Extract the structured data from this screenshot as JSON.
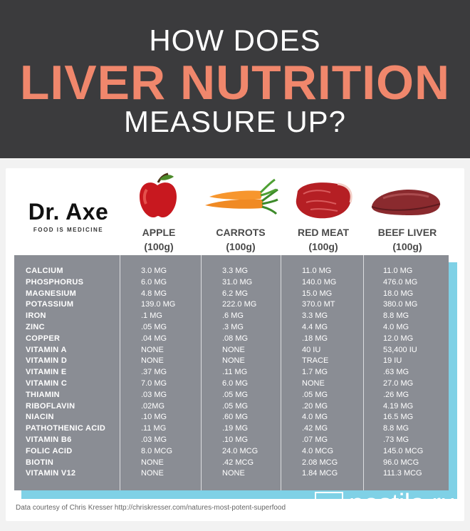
{
  "header": {
    "line1": "HOW DOES",
    "line2": "LIVER NUTRITION",
    "line3": "MEASURE UP?"
  },
  "brand": {
    "name": "Dr. Axe",
    "tagline": "FOOD IS MEDICINE"
  },
  "columns": [
    {
      "name": "APPLE",
      "serving": "(100g)"
    },
    {
      "name": "CARROTS",
      "serving": "(100g)"
    },
    {
      "name": "RED MEAT",
      "serving": "(100g)"
    },
    {
      "name": "BEEF LIVER",
      "serving": "(100g)"
    }
  ],
  "nutrients": [
    "CALCIUM",
    "PHOSPHORUS",
    "MAGNESIUM",
    "POTASSIUM",
    "IRON",
    "ZINC",
    "COPPER",
    "VITAMIN A",
    "VITAMIN D",
    "VITAMIN E",
    "VITAMIN C",
    "THIAMIN",
    "RIBOFLAVIN",
    "NIACIN",
    "PATHOTHENIC ACID",
    "VITAMIN B6",
    "FOLIC ACID",
    "BIOTIN",
    "VITAMIN V12"
  ],
  "values": {
    "apple": [
      "3.0 MG",
      "6.0 MG",
      "4.8 MG",
      "139.0 MG",
      ".1 MG",
      ".05 MG",
      ".04 MG",
      "NONE",
      "NONE",
      ".37 MG",
      "7.0 MG",
      ".03 MG",
      ".02MG",
      ".10 MG",
      ".11 MG",
      ".03 MG",
      "8.0 MCG",
      "NONE",
      "NONE"
    ],
    "carrots": [
      "3.3 MG",
      "31.0 MG",
      "6.2 MG",
      "222.0 MG",
      ".6 MG",
      ".3 MG",
      ".08 MG",
      "NONE",
      "NONE",
      ".11 MG",
      "6.0 MG",
      ".05 MG",
      ".05 MG",
      ".60 MG",
      ".19 MG",
      ".10 MG",
      "24.0 MCG",
      ".42 MCG",
      "NONE"
    ],
    "red_meat": [
      "11.0 MG",
      "140.0 MG",
      "15.0 MG",
      "370.0 MT",
      "3.3 MG",
      "4.4 MG",
      ".18 MG",
      "40 IU",
      "TRACE",
      "1.7 MG",
      "NONE",
      ".05 MG",
      ".20 MG",
      "4.0 MG",
      ".42 MG",
      ".07 MG",
      "4.0 MCG",
      "2.08 MCG",
      "1.84 MCG"
    ],
    "beef_liver": [
      "11.0 MG",
      "476.0 MG",
      "18.0 MG",
      "380.0 MG",
      "8.8 MG",
      "4.0 MG",
      "12.0 MG",
      "53,400 IU",
      "19 IU",
      ".63 MG",
      "27.0 MG",
      ".26 MG",
      "4.19 MG",
      "16.5 MG",
      "8.8 MG",
      ".73 MG",
      "145.0 MCG",
      "96.0 MCG",
      "111.3 MCG"
    ]
  },
  "credit": "Data courtesy of Chris Kresser http://chriskresser.com/natures-most-potent-superfood",
  "watermark": "postila.ru",
  "colors": {
    "header_bg": "#3b3b3d",
    "accent": "#f0876c",
    "table_bg": "#8a8d94",
    "table_shadow": "#7fd1e6"
  }
}
